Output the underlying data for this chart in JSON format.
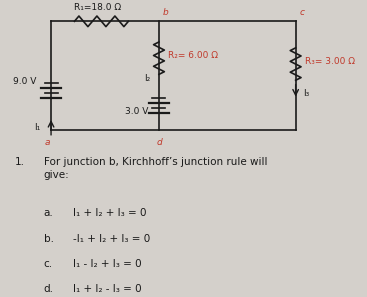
{
  "bg_color": "#d4d0cb",
  "circuit": {
    "R1_label": "R₁=18.0 Ω",
    "R2_label": "R₂= 6.00 Ω",
    "R3_label": "R₃= 3.00 Ω",
    "V1_label": "9.0 V",
    "V2_label": "3.0 V",
    "I1_label": "I₁",
    "I2_label": "I₂",
    "I3_label": "I₃",
    "node_a": "a",
    "node_b": "b",
    "node_c": "c",
    "node_d": "d"
  },
  "question": {
    "number": "1.",
    "text": "For junction b, Kirchhoff’s junction rule will\ngive:",
    "options": [
      [
        "a.",
        "I₁ + I₂ + I₃ = 0"
      ],
      [
        "b.",
        "-I₁ + I₂ + I₃ = 0"
      ],
      [
        "c.",
        "I₁ - I₂ + I₃ = 0"
      ],
      [
        "d.",
        "I₁ + I₂ - I₃ = 0"
      ]
    ]
  },
  "red_color": "#c0392b",
  "black_color": "#1a1a1a",
  "line_color": "#1a1a1a",
  "text_color": "#1a1a1a"
}
